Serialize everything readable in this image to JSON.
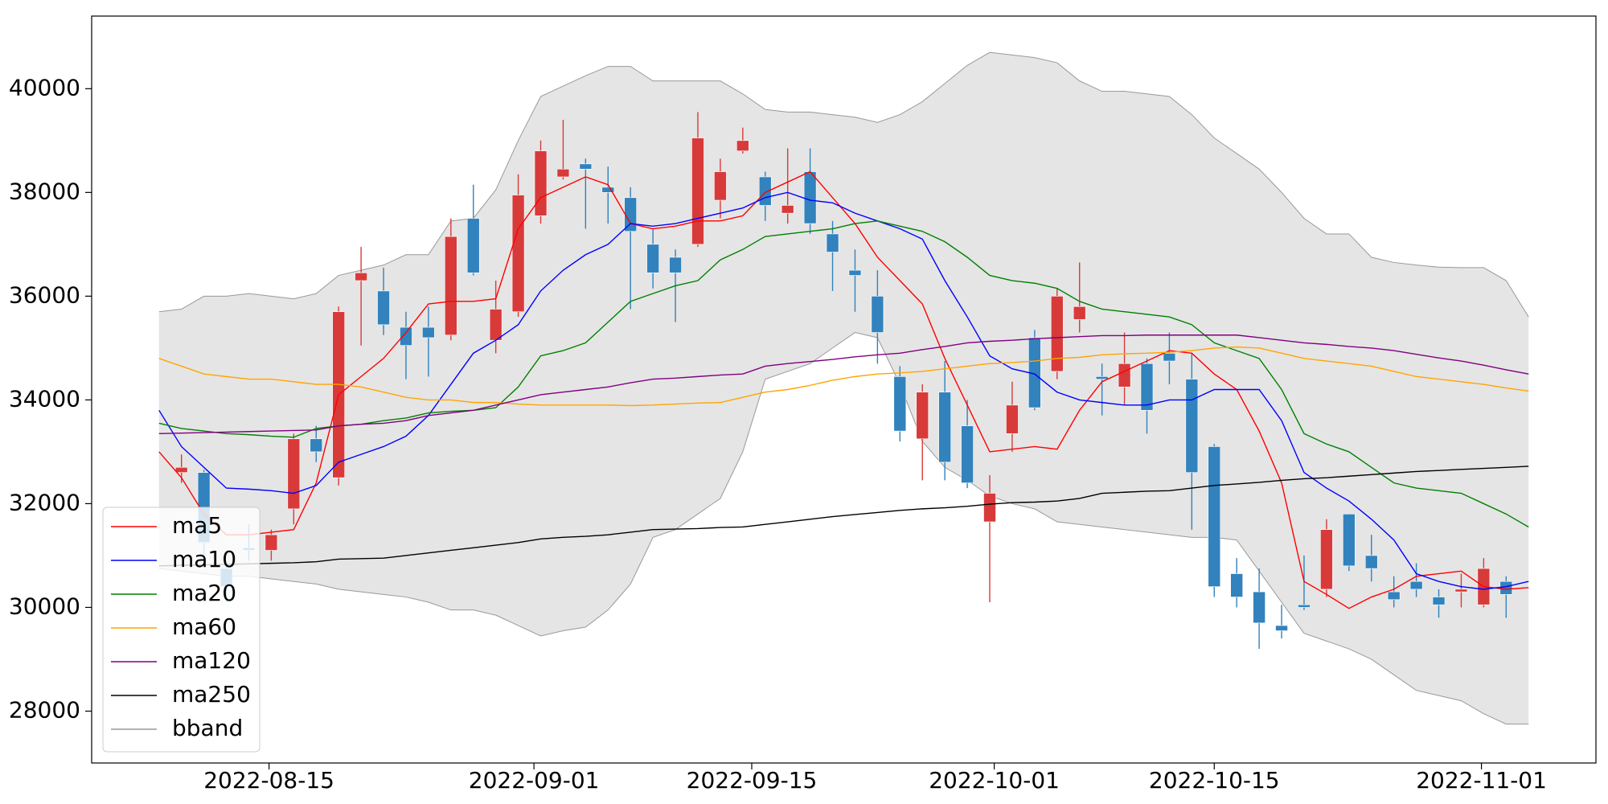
{
  "chart_data": {
    "type": "candlestick",
    "x": [
      0,
      1,
      2,
      3,
      4,
      5,
      6,
      7,
      8,
      9,
      10,
      11,
      12,
      13,
      14,
      15,
      16,
      17,
      18,
      19,
      20,
      21,
      22,
      23,
      24,
      25,
      26,
      27,
      28,
      29,
      30,
      31,
      32,
      33,
      34,
      35,
      36,
      37,
      38,
      39,
      40,
      41,
      42,
      43,
      44,
      45,
      46,
      47,
      48,
      49,
      50,
      51,
      52,
      53,
      54,
      55,
      56,
      57,
      58,
      59,
      60,
      61
    ],
    "xlim": [
      -3,
      64
    ],
    "xticks": [
      {
        "value": 4.9,
        "label": "2022-08-15"
      },
      {
        "value": 16.7,
        "label": "2022-09-01"
      },
      {
        "value": 26.4,
        "label": "2022-09-15"
      },
      {
        "value": 37.2,
        "label": "2022-10-01"
      },
      {
        "value": 47.0,
        "label": "2022-10-15"
      },
      {
        "value": 58.9,
        "label": "2022-11-01"
      }
    ],
    "ylim": [
      27000,
      41400
    ],
    "yticks": [
      28000,
      30000,
      32000,
      34000,
      36000,
      38000,
      40000
    ],
    "legend": "lower left",
    "candles": {
      "up_color": "#d83a3a",
      "down_color": "#3182bd",
      "open": [
        null,
        32600,
        32600,
        30750,
        31150,
        31100,
        31900,
        33250,
        32500,
        36300,
        36100,
        35400,
        35400,
        35250,
        37500,
        35150,
        35700,
        37550,
        38300,
        38550,
        38100,
        37900,
        37000,
        36750,
        37000,
        37850,
        38800,
        38300,
        37600,
        38400,
        37200,
        36500,
        36000,
        34450,
        33250,
        34150,
        33500,
        31650,
        33350,
        35200,
        34550,
        35550,
        34450,
        34250,
        34700,
        34900,
        34400,
        33100,
        30650,
        30300,
        29650,
        30050,
        30350,
        31800,
        31000,
        30300,
        30500,
        30200,
        30300,
        30050,
        30500,
        null
      ],
      "high": [
        null,
        32950,
        32650,
        30900,
        31600,
        31500,
        33350,
        33500,
        35800,
        36950,
        36550,
        35700,
        35800,
        37500,
        38150,
        36300,
        38350,
        39000,
        39400,
        38650,
        38500,
        38100,
        37300,
        36900,
        39550,
        38650,
        39250,
        38400,
        38850,
        38850,
        37450,
        36900,
        36500,
        34650,
        34300,
        34750,
        34000,
        32550,
        34350,
        35350,
        36150,
        36650,
        34700,
        35300,
        34800,
        35300,
        34900,
        33150,
        30950,
        30750,
        30050,
        31000,
        31700,
        31800,
        31400,
        30600,
        30850,
        30350,
        30650,
        30950,
        30600,
        null
      ],
      "low": [
        null,
        32400,
        31000,
        30100,
        30900,
        30900,
        31600,
        32800,
        32350,
        35050,
        35250,
        34400,
        34450,
        35150,
        36400,
        34900,
        35600,
        37400,
        38250,
        37300,
        37400,
        35750,
        36150,
        35500,
        36950,
        37500,
        38750,
        37450,
        37400,
        37200,
        36100,
        35700,
        34700,
        33200,
        32450,
        32450,
        32300,
        30100,
        33000,
        33800,
        34400,
        35300,
        33700,
        33900,
        33350,
        34300,
        31500,
        30200,
        30000,
        29200,
        29400,
        29950,
        30200,
        30700,
        30500,
        30000,
        30200,
        29800,
        30000,
        30000,
        29800,
        null
      ],
      "close": [
        null,
        32700,
        31250,
        30400,
        31100,
        31400,
        33250,
        33000,
        35700,
        36450,
        35450,
        35050,
        35200,
        37150,
        36450,
        35750,
        37950,
        38800,
        38450,
        38450,
        38000,
        37250,
        36450,
        36450,
        39050,
        38400,
        39000,
        37750,
        37750,
        37400,
        36850,
        36400,
        35300,
        33400,
        34150,
        32800,
        32400,
        32200,
        33900,
        33850,
        36000,
        35800,
        34400,
        34700,
        33800,
        34750,
        32600,
        30400,
        30200,
        29700,
        29550,
        30000,
        31500,
        30800,
        30750,
        30150,
        30350,
        30050,
        30350,
        30750,
        30250,
        null
      ]
    },
    "series": [
      {
        "name": "ma5",
        "color": "#ff0000",
        "values": [
          33000,
          32500,
          31800,
          31400,
          31400,
          31450,
          31500,
          32400,
          34100,
          34450,
          34800,
          35300,
          35850,
          35900,
          35900,
          35950,
          37300,
          37900,
          38100,
          38300,
          38150,
          37400,
          37300,
          37350,
          37450,
          37450,
          37550,
          38000,
          38200,
          38400,
          37900,
          37400,
          36750,
          36300,
          35850,
          34800,
          33900,
          33000,
          33050,
          33100,
          33050,
          33800,
          34350,
          34550,
          34750,
          34950,
          34900,
          34500,
          34200,
          33400,
          32400,
          30500,
          30250,
          29980,
          30200,
          30350,
          30600,
          30650,
          30700,
          30400,
          30350,
          30380
        ]
      },
      {
        "name": "ma10",
        "color": "#0000ff",
        "values": [
          33800,
          33100,
          32700,
          32300,
          32280,
          32250,
          32200,
          32350,
          32800,
          32950,
          33100,
          33300,
          33700,
          34300,
          34900,
          35150,
          35450,
          36100,
          36500,
          36800,
          37000,
          37400,
          37350,
          37400,
          37500,
          37600,
          37700,
          37900,
          38000,
          37850,
          37800,
          37600,
          37450,
          37300,
          37100,
          36300,
          35600,
          34850,
          34600,
          34500,
          34150,
          34000,
          33950,
          33900,
          33900,
          34000,
          34000,
          34200,
          34200,
          34200,
          33600,
          32600,
          32300,
          32050,
          31700,
          31300,
          30650,
          30500,
          30400,
          30350,
          30400,
          30500
        ]
      },
      {
        "name": "ma20",
        "color": "#008000",
        "values": [
          33550,
          33450,
          33400,
          33350,
          33330,
          33300,
          33280,
          33450,
          33500,
          33530,
          33600,
          33650,
          33750,
          33780,
          33800,
          33850,
          34250,
          34850,
          34950,
          35100,
          35500,
          35900,
          36050,
          36200,
          36300,
          36700,
          36900,
          37150,
          37200,
          37250,
          37300,
          37400,
          37450,
          37350,
          37250,
          37050,
          36750,
          36400,
          36300,
          36250,
          36150,
          35900,
          35750,
          35700,
          35650,
          35600,
          35450,
          35100,
          34950,
          34800,
          34200,
          33350,
          33150,
          33000,
          32700,
          32400,
          32300,
          32250,
          32200,
          32000,
          31800,
          31550
        ]
      },
      {
        "name": "ma60",
        "color": "#ffa500",
        "values": [
          34800,
          34650,
          34500,
          34450,
          34400,
          34400,
          34350,
          34300,
          34300,
          34250,
          34150,
          34050,
          34000,
          34000,
          33950,
          33950,
          33920,
          33900,
          33900,
          33900,
          33900,
          33890,
          33900,
          33920,
          33940,
          33950,
          34050,
          34150,
          34200,
          34280,
          34380,
          34450,
          34500,
          34520,
          34550,
          34600,
          34650,
          34700,
          34720,
          34750,
          34800,
          34820,
          34870,
          34890,
          34900,
          34920,
          34950,
          35000,
          35020,
          35000,
          34900,
          34800,
          34750,
          34700,
          34650,
          34550,
          34450,
          34400,
          34350,
          34300,
          34230,
          34170
        ]
      },
      {
        "name": "ma120",
        "color": "#800080",
        "values": [
          33350,
          33360,
          33370,
          33380,
          33390,
          33400,
          33410,
          33420,
          33500,
          33530,
          33550,
          33600,
          33700,
          33750,
          33800,
          33900,
          34000,
          34100,
          34150,
          34200,
          34250,
          34330,
          34400,
          34420,
          34450,
          34480,
          34500,
          34650,
          34700,
          34740,
          34780,
          34830,
          34870,
          34900,
          34970,
          35030,
          35100,
          35130,
          35150,
          35180,
          35200,
          35220,
          35240,
          35240,
          35250,
          35250,
          35250,
          35250,
          35250,
          35200,
          35150,
          35100,
          35070,
          35030,
          35000,
          34950,
          34880,
          34810,
          34750,
          34670,
          34580,
          34500
        ]
      },
      {
        "name": "ma250",
        "color": "#000000",
        "values": [
          30800,
          30810,
          30820,
          30830,
          30840,
          30850,
          30860,
          30880,
          30930,
          30940,
          30950,
          31000,
          31050,
          31100,
          31150,
          31200,
          31250,
          31320,
          31350,
          31370,
          31400,
          31450,
          31500,
          31510,
          31520,
          31540,
          31550,
          31600,
          31650,
          31700,
          31750,
          31790,
          31830,
          31870,
          31900,
          31920,
          31950,
          31990,
          32020,
          32030,
          32050,
          32100,
          32200,
          32220,
          32240,
          32250,
          32300,
          32350,
          32380,
          32410,
          32450,
          32480,
          32500,
          32530,
          32560,
          32590,
          32620,
          32640,
          32660,
          32680,
          32700,
          32720
        ]
      }
    ],
    "bband": {
      "name": "bband",
      "color": "#999999",
      "fill": "#e5e5e5",
      "upper": [
        35700,
        35750,
        36000,
        36000,
        36050,
        36000,
        35950,
        36050,
        36400,
        36500,
        36600,
        36800,
        36800,
        37450,
        37500,
        38050,
        39000,
        39850,
        40050,
        40250,
        40430,
        40430,
        40150,
        40150,
        40150,
        40150,
        39900,
        39600,
        39550,
        39550,
        39500,
        39450,
        39350,
        39500,
        39750,
        40100,
        40450,
        40700,
        40650,
        40600,
        40500,
        40150,
        39950,
        39950,
        39900,
        39850,
        39500,
        39050,
        38750,
        38450,
        38000,
        37500,
        37200,
        37200,
        36750,
        36650,
        36600,
        36560,
        36550,
        36550,
        36300,
        35600
      ],
      "lower": [
        30750,
        30700,
        30650,
        30600,
        30600,
        30550,
        30500,
        30450,
        30350,
        30300,
        30250,
        30200,
        30100,
        29950,
        29950,
        29850,
        29650,
        29450,
        29550,
        29620,
        29950,
        30450,
        31350,
        31500,
        31800,
        32100,
        33000,
        34400,
        34550,
        34700,
        35000,
        35300,
        35200,
        34300,
        33200,
        32700,
        32450,
        32150,
        32000,
        31900,
        31650,
        31600,
        31550,
        31500,
        31450,
        31400,
        31350,
        31350,
        31300,
        30700,
        30100,
        29500,
        29350,
        29200,
        29000,
        28700,
        28400,
        28300,
        28200,
        27950,
        27750,
        27750
      ]
    }
  }
}
